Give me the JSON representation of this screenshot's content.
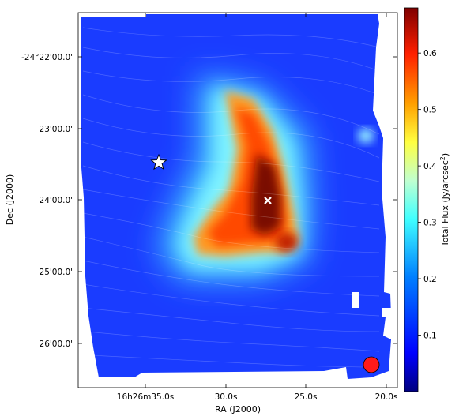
{
  "chart_data": {
    "type": "heatmap",
    "title": "",
    "xlabel": "RA (J2000)",
    "ylabel": "Dec (J2000)",
    "x_ticks": [
      "16h26m35.0s",
      "30.0s",
      "25.0s",
      "20.0s"
    ],
    "y_ticks": [
      "-24°22'00.0\"",
      "23'00.0\"",
      "24'00.0\"",
      "25'00.0\"",
      "26'00.0\""
    ],
    "colorbar": {
      "label": "Total Flux (Jy/arcsec",
      "label_sup": "2",
      "label_close": ")",
      "range": [
        0.0,
        0.68
      ],
      "ticks": [
        "0.1",
        "0.2",
        "0.3",
        "0.4",
        "0.5",
        "0.6"
      ],
      "tick_values": [
        0.1,
        0.2,
        0.3,
        0.4,
        0.5,
        0.6
      ],
      "colormap": "jet"
    },
    "markers": [
      {
        "symbol": "star",
        "color": "#ffffff"
      },
      {
        "symbol": "x",
        "color": "#ffffff"
      },
      {
        "symbol": "beam-circle",
        "color": "#ff2020"
      }
    ],
    "overlay": "polarization streamlines (line integral convolution)",
    "colors": {
      "low": "#0a30ff",
      "mid": "#7ff5ff",
      "high": "#6a0a00"
    }
  }
}
